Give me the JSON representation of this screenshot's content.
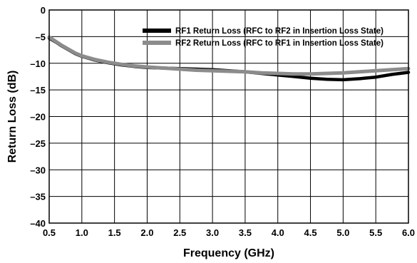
{
  "chart_data": {
    "type": "line",
    "title": "",
    "xlabel": "Frequency (GHz)",
    "ylabel": "Return Loss (dB)",
    "xlim": [
      0.5,
      6.0
    ],
    "ylim": [
      -40,
      0
    ],
    "xticks": [
      0.5,
      1.0,
      1.5,
      2.0,
      2.5,
      3.0,
      3.5,
      4.0,
      4.5,
      5.0,
      5.5,
      6.0
    ],
    "xtick_labels": [
      "0.5",
      "1.0",
      "1.5",
      "2.0",
      "2.5",
      "3.0",
      "3.5",
      "4.0",
      "4.5",
      "5.0",
      "5.5",
      "6.0"
    ],
    "yticks": [
      0,
      -5,
      -10,
      -15,
      -20,
      -25,
      -30,
      -35,
      -40
    ],
    "ytick_labels": [
      "0",
      "–5",
      "–10",
      "–15",
      "–20",
      "–25",
      "–30",
      "–35",
      "–40"
    ],
    "grid": true,
    "legend_position": "top-right",
    "series": [
      {
        "name": "RF1 Return Loss (RFC to RF2 in Insertion Loss State)",
        "color": "#000000",
        "x": [
          0.5,
          0.6,
          0.7,
          0.8,
          0.9,
          1.0,
          1.2,
          1.4,
          1.6,
          1.8,
          2.0,
          2.25,
          2.5,
          2.75,
          3.0,
          3.25,
          3.5,
          3.75,
          4.0,
          4.25,
          4.5,
          4.75,
          5.0,
          5.25,
          5.5,
          5.75,
          6.0
        ],
        "y": [
          -5.3,
          -6.0,
          -6.8,
          -7.5,
          -8.2,
          -8.7,
          -9.4,
          -9.9,
          -10.3,
          -10.6,
          -10.8,
          -10.9,
          -11.0,
          -11.1,
          -11.2,
          -11.4,
          -11.6,
          -11.9,
          -12.2,
          -12.5,
          -12.8,
          -13.0,
          -13.1,
          -12.9,
          -12.6,
          -12.1,
          -11.7
        ]
      },
      {
        "name": "RF2 Return Loss (RFC to RF1 in Insertion Loss State)",
        "color": "#8c8c8c",
        "x": [
          0.5,
          0.6,
          0.7,
          0.8,
          0.9,
          1.0,
          1.2,
          1.4,
          1.6,
          1.8,
          2.0,
          2.25,
          2.5,
          2.75,
          3.0,
          3.25,
          3.5,
          3.75,
          4.0,
          4.25,
          4.5,
          4.75,
          5.0,
          5.25,
          5.5,
          5.75,
          6.0
        ],
        "y": [
          -5.1,
          -5.9,
          -6.7,
          -7.4,
          -8.1,
          -8.6,
          -9.3,
          -9.8,
          -10.2,
          -10.5,
          -10.7,
          -10.9,
          -11.1,
          -11.3,
          -11.4,
          -11.5,
          -11.6,
          -11.8,
          -11.9,
          -12.0,
          -12.0,
          -11.9,
          -11.8,
          -11.6,
          -11.4,
          -11.2,
          -11.0
        ]
      }
    ]
  }
}
